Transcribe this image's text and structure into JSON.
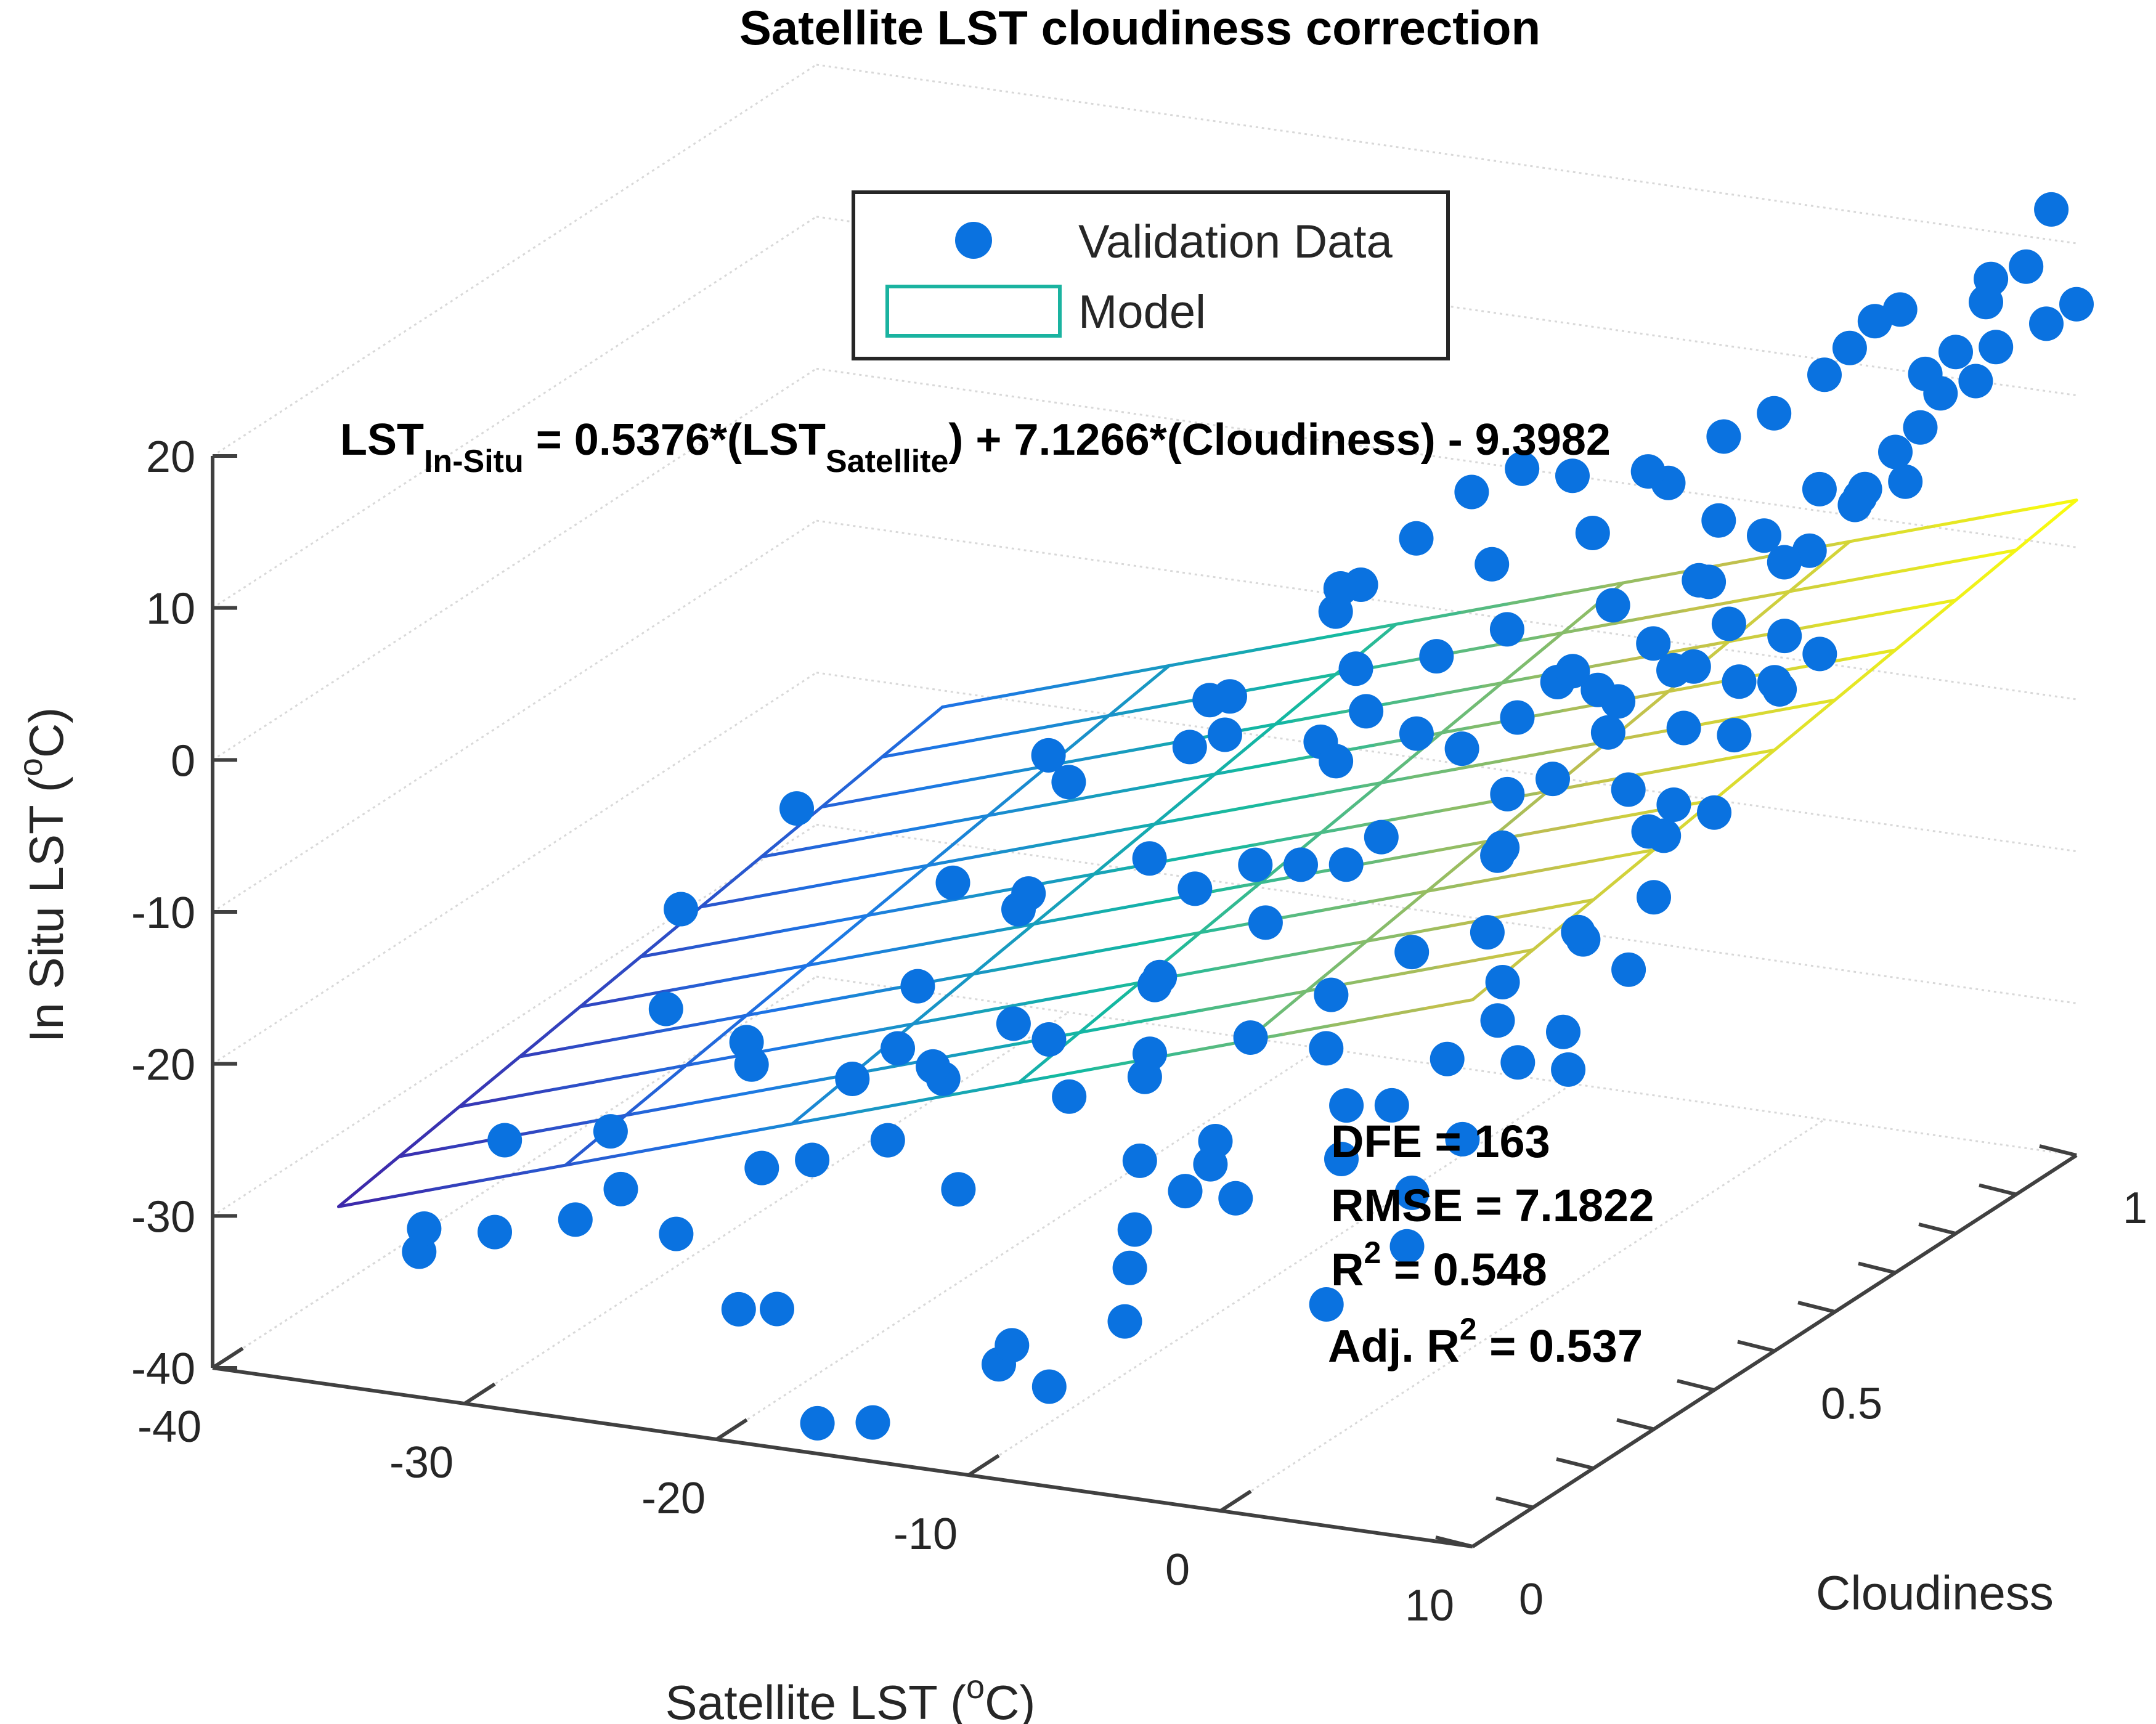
{
  "chart_data": {
    "type": "scatter3d",
    "title": "Satellite LST cloudiness correction",
    "equation": {
      "lhs": "LST",
      "lhs_sub": "In-Situ",
      "part1": " = 0.5376*(LST",
      "part1_sub": "Satellite",
      "part2": ") + 7.1266*(Cloudiness) - 9.3982"
    },
    "legend": {
      "items": [
        "Validation Data",
        "Model"
      ],
      "position": "top-center"
    },
    "axes": {
      "x": {
        "label": "Satellite LST (",
        "label_sup": "o",
        "label_end": "C)",
        "lim": [
          -40,
          10
        ],
        "ticks": [
          -40,
          -30,
          -20,
          -10,
          0,
          10
        ],
        "tick_labels": [
          "-40",
          "-30",
          "-20",
          "-10",
          "0",
          "10"
        ]
      },
      "y": {
        "label": "Cloudiness",
        "lim": [
          0,
          1
        ],
        "ticks": [
          0,
          0.5,
          1
        ],
        "tick_labels": [
          "0",
          "0.5",
          "1"
        ]
      },
      "z": {
        "label": "In Situ LST (",
        "label_sup": "o",
        "label_end": "C)",
        "lim": [
          -40,
          20
        ],
        "ticks": [
          -40,
          -30,
          -20,
          -10,
          0,
          10,
          20
        ],
        "tick_labels": [
          "-40",
          "-30",
          "-20",
          "-10",
          "0",
          "10",
          "20"
        ]
      }
    },
    "model": {
      "intercept": -9.3982,
      "coef_satellite": 0.5376,
      "coef_cloudiness": 7.1266,
      "x_range": [
        -35,
        10
      ],
      "y_range": [
        0,
        1
      ],
      "grid_x_lines": 10,
      "grid_y_lines": 5
    },
    "stats": {
      "dfe_label": "DFE = 163",
      "rmse_label": "RMSE = 7.1822",
      "r2_pre": "R",
      "r2_sup": "2",
      "r2_post": " = 0.548",
      "adj_pre": "Adj. R",
      "adj_sup": "2",
      "adj_post": " = 0.537"
    },
    "points_estimated": [
      [
        -30,
        0.05,
        -30
      ],
      [
        -28,
        0.1,
        -30
      ],
      [
        -28,
        0.25,
        -20
      ],
      [
        -31,
        0.4,
        -18
      ],
      [
        -30,
        0.55,
        -15
      ],
      [
        -25,
        0.05,
        -26
      ],
      [
        -24,
        0.1,
        -30
      ],
      [
        -22,
        0.12,
        -35
      ],
      [
        -20,
        0.1,
        -34
      ],
      [
        -16,
        0.0,
        -38
      ],
      [
        -15,
        0.05,
        -39
      ],
      [
        -18,
        0.2,
        -25
      ],
      [
        -20,
        0.3,
        -22
      ],
      [
        -17,
        0.25,
        -22
      ],
      [
        -14,
        0.3,
        -20
      ],
      [
        -16,
        0.55,
        -15
      ],
      [
        -14,
        0.75,
        -12
      ],
      [
        -13,
        0.9,
        -10
      ],
      [
        -12,
        0.95,
        -5
      ],
      [
        -10,
        1.0,
        0
      ],
      [
        -11,
        0.7,
        -8
      ],
      [
        -8,
        0.6,
        -13
      ],
      [
        -9,
        0.85,
        -6
      ],
      [
        -7,
        0.85,
        -9
      ],
      [
        -6,
        0.9,
        -5
      ],
      [
        -9,
        0.25,
        -20
      ],
      [
        -7,
        0.15,
        -27
      ],
      [
        -6,
        0.1,
        -28
      ],
      [
        -5,
        0.15,
        -24
      ],
      [
        -4,
        0.15,
        -22
      ],
      [
        -8,
        0.05,
        -35
      ],
      [
        -10,
        0.05,
        -34
      ],
      [
        -9,
        0.03,
        -32
      ],
      [
        -5,
        0.05,
        -30
      ],
      [
        -3,
        0.3,
        -18
      ],
      [
        -2,
        0.4,
        -14
      ],
      [
        -1,
        0.5,
        -10
      ],
      [
        0,
        0.55,
        -6
      ],
      [
        1,
        0.6,
        -4
      ],
      [
        2,
        0.7,
        -2
      ],
      [
        -3,
        0.75,
        -6
      ],
      [
        -2,
        0.8,
        -4
      ],
      [
        -1,
        0.85,
        -1
      ],
      [
        0,
        0.9,
        1
      ],
      [
        1,
        0.95,
        3
      ],
      [
        2,
        0.2,
        -18
      ],
      [
        3,
        0.25,
        -16
      ],
      [
        4,
        0.3,
        -12
      ],
      [
        4,
        0.15,
        -22
      ],
      [
        5,
        0.1,
        -24
      ],
      [
        3,
        0.05,
        -27
      ],
      [
        6,
        0.35,
        -10
      ],
      [
        5,
        0.5,
        -7
      ],
      [
        6,
        0.6,
        -3
      ],
      [
        7,
        0.7,
        0
      ],
      [
        3,
        0.85,
        2
      ],
      [
        4,
        0.9,
        5
      ],
      [
        5,
        0.95,
        8
      ],
      [
        6,
        1.0,
        10
      ],
      [
        7,
        0.9,
        12
      ],
      [
        8,
        0.8,
        9
      ],
      [
        8,
        0.6,
        4
      ],
      [
        8,
        0.4,
        -4
      ],
      [
        9,
        0.3,
        -10
      ],
      [
        9,
        0.2,
        -14
      ],
      [
        10,
        0.8,
        18
      ],
      [
        10,
        1.0,
        16
      ],
      [
        9,
        1.0,
        22
      ],
      [
        8,
        1.0,
        18
      ],
      [
        7,
        0.5,
        10
      ],
      [
        9,
        0.55,
        2
      ],
      [
        10,
        0.5,
        4
      ],
      [
        10,
        0.4,
        -2
      ],
      [
        10,
        0.3,
        -5
      ],
      [
        10,
        0.15,
        -10
      ],
      [
        10,
        0.7,
        14
      ],
      [
        10,
        0.85,
        20
      ],
      [
        10,
        0.95,
        16
      ],
      [
        9,
        0.9,
        20
      ],
      [
        8,
        0.95,
        14
      ],
      [
        -20,
        0.5,
        -18
      ],
      [
        -22,
        0.6,
        -20
      ],
      [
        -24,
        0.5,
        -24
      ],
      [
        -25,
        0.6,
        -20
      ],
      [
        -26,
        0.3,
        -23
      ],
      [
        -18,
        0.7,
        -12
      ],
      [
        -19,
        0.8,
        -14
      ],
      [
        -17,
        0.9,
        -8
      ],
      [
        -15,
        0.85,
        -10
      ],
      [
        -13,
        0.6,
        -16
      ],
      [
        -12,
        0.4,
        -18
      ],
      [
        -11,
        0.35,
        -17
      ],
      [
        -10,
        0.55,
        -14
      ],
      [
        -9,
        0.45,
        -15
      ],
      [
        -7,
        0.5,
        -12
      ],
      [
        -6,
        0.65,
        -8
      ],
      [
        -5,
        0.7,
        -7
      ],
      [
        -4,
        0.75,
        -5
      ],
      [
        -3,
        0.6,
        -9
      ],
      [
        -2,
        0.55,
        -11
      ],
      [
        -1,
        0.7,
        -5
      ],
      [
        0,
        0.75,
        -4
      ],
      [
        1,
        0.4,
        -12
      ],
      [
        -4,
        0.35,
        -16
      ],
      [
        -6,
        0.3,
        -18
      ],
      [
        -27,
        0.35,
        -26
      ],
      [
        -29,
        0.2,
        -27
      ],
      [
        -32,
        0.15,
        -27
      ],
      [
        -33,
        0.05,
        -32
      ],
      [
        -34,
        0.1,
        -32
      ],
      [
        -23,
        0.35,
        -26
      ],
      [
        -21,
        0.4,
        -26
      ],
      [
        -19,
        0.45,
        -24
      ],
      [
        -21,
        0.2,
        -27
      ],
      [
        -23,
        0.2,
        -28
      ],
      [
        -5,
        0.95,
        2
      ],
      [
        -4,
        1.0,
        4
      ],
      [
        -2,
        1.0,
        6
      ],
      [
        0,
        1.0,
        9
      ],
      [
        1,
        1.0,
        11
      ],
      [
        2,
        1.0,
        13
      ],
      [
        3,
        1.0,
        14
      ],
      [
        4,
        1.0,
        10
      ],
      [
        5,
        0.85,
        6
      ],
      [
        6,
        0.8,
        7
      ],
      [
        -15,
        0.95,
        -4
      ],
      [
        -14,
        1.0,
        -2
      ],
      [
        -12,
        1.0,
        0
      ],
      [
        -16,
        0.9,
        -6
      ],
      [
        -18,
        0.95,
        -8
      ],
      [
        -8,
        0.95,
        -2
      ],
      [
        -7,
        1.0,
        1
      ],
      [
        -3,
        0.95,
        0
      ],
      [
        1,
        0.8,
        -2
      ],
      [
        2,
        0.85,
        1
      ],
      [
        3,
        0.55,
        -6
      ],
      [
        4,
        0.6,
        -3
      ],
      [
        5,
        0.65,
        -1
      ],
      [
        6,
        0.5,
        -5
      ],
      [
        7,
        0.3,
        -8
      ],
      [
        7,
        0.2,
        -14
      ],
      [
        6,
        0.15,
        -18
      ],
      [
        5,
        0.25,
        -13
      ],
      [
        -1,
        0.25,
        -20
      ],
      [
        0,
        0.2,
        -22
      ],
      [
        -3,
        0.15,
        -24
      ],
      [
        -5,
        0.2,
        -22
      ],
      [
        -8,
        0.2,
        -24
      ],
      [
        -10,
        0.3,
        -20
      ],
      [
        -12,
        0.25,
        -22
      ],
      [
        -14,
        0.15,
        -26
      ],
      [
        -13,
        0.5,
        -15
      ],
      [
        -11,
        0.65,
        -10
      ],
      [
        -9,
        0.7,
        -9
      ],
      [
        -20,
        0.85,
        -13
      ],
      [
        -22,
        0.9,
        -15
      ],
      [
        -24,
        0.75,
        -17
      ],
      [
        -26,
        0.8,
        -17
      ]
    ]
  }
}
